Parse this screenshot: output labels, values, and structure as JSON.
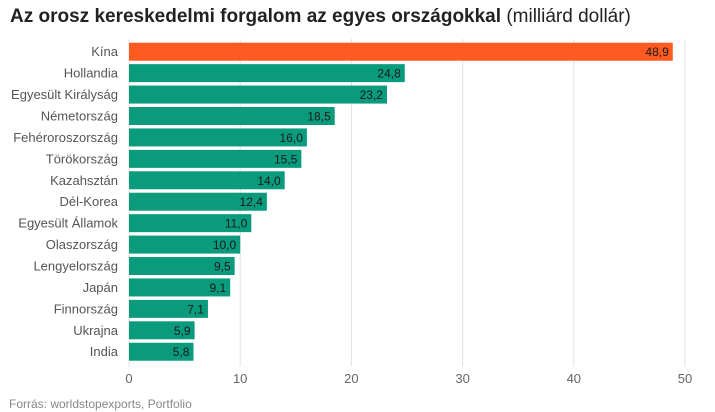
{
  "title_bold": "Az orosz kereskedelmi forgalom az egyes országokkal",
  "title_suffix": "(milliárd dollár)",
  "source": "Forrás: worldstopexports,  Portfolio",
  "colors": {
    "highlight": "#ff5a1f",
    "default": "#0a9b7c",
    "grid": "#e0e0e0"
  },
  "chart_data": {
    "type": "bar",
    "orientation": "horizontal",
    "title": "Az orosz kereskedelmi forgalom az egyes országokkal (milliárd dollár)",
    "categories": [
      "Kína",
      "Hollandia",
      "Egyesült Királyság",
      "Németország",
      "Fehéroroszország",
      "Törökország",
      "Kazahsztán",
      "Dél-Korea",
      "Egyesült Államok",
      "Olaszország",
      "Lengyelország",
      "Japán",
      "Finnország",
      "Ukrajna",
      "India"
    ],
    "values": [
      48.9,
      24.8,
      23.2,
      18.5,
      16.0,
      15.5,
      14.0,
      12.4,
      11.0,
      10.0,
      9.5,
      9.1,
      7.1,
      5.9,
      5.8
    ],
    "value_labels": [
      "48,9",
      "24,8",
      "23,2",
      "18,5",
      "16,0",
      "15,5",
      "14,0",
      "12,4",
      "11,0",
      "10,0",
      "9,5",
      "9,1",
      "7,1",
      "5,9",
      "5,8"
    ],
    "highlight_index": 0,
    "xlim": [
      0,
      50
    ],
    "xticks": [
      0,
      10,
      20,
      30,
      40,
      50
    ],
    "xtick_labels": [
      "0",
      "10",
      "20",
      "30",
      "40",
      "50"
    ],
    "grid": true
  }
}
